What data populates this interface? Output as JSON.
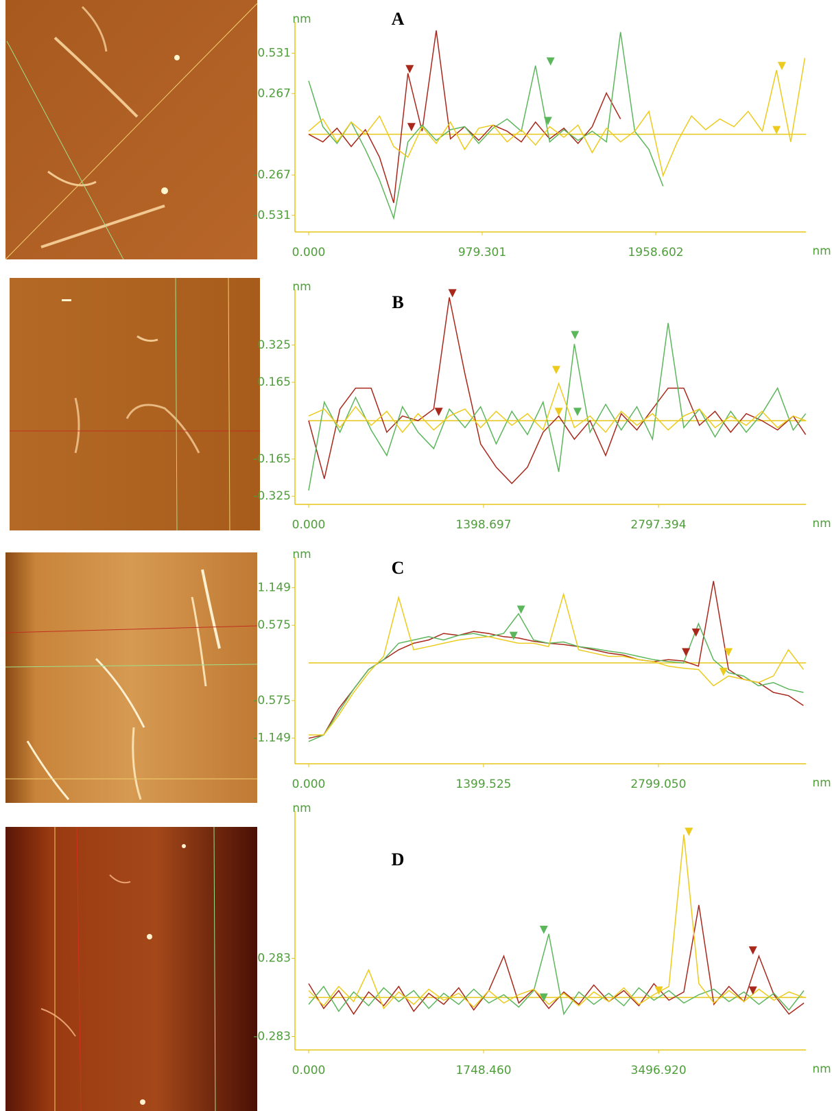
{
  "chart_data": [
    {
      "type": "line",
      "title": "A",
      "ylabel": "nm",
      "xlabel": "nm",
      "xlim": [
        0,
        2806
      ],
      "ylim": [
        -0.64,
        0.7
      ],
      "xticks": [
        {
          "value": 0,
          "label": "0.000"
        },
        979.301,
        1958.602
      ],
      "yticks": [
        0.531,
        0.267,
        -0.267,
        -0.531
      ],
      "x": [
        0,
        80,
        160,
        240,
        320,
        400,
        480,
        560,
        640,
        720,
        800,
        880,
        960,
        1040,
        1120,
        1200,
        1280,
        1360,
        1440,
        1520,
        1600,
        1680,
        1760,
        1840,
        1920,
        2000,
        2080,
        2160,
        2240,
        2320,
        2400,
        2480,
        2560,
        2640,
        2720,
        2800
      ],
      "series": [
        {
          "color": "#a8281c",
          "values": [
            0,
            -0.05,
            0.04,
            -0.08,
            0.03,
            -0.15,
            -0.45,
            0.4,
            0.02,
            0.68,
            -0.03,
            0.05,
            -0.04,
            0.06,
            0.02,
            -0.05,
            0.08,
            -0.03,
            0.04,
            -0.06,
            0.05,
            0.27,
            0.1,
            null,
            null,
            null,
            null,
            null,
            null,
            null,
            null,
            null,
            null,
            null,
            null,
            null
          ]
        },
        {
          "color": "#5cb65c",
          "values": [
            0.35,
            0.05,
            -0.06,
            0.08,
            -0.1,
            -0.3,
            -0.55,
            -0.05,
            0.06,
            -0.04,
            0.03,
            0.05,
            -0.06,
            0.04,
            0.1,
            0.02,
            0.45,
            -0.05,
            0.03,
            -0.04,
            0.02,
            -0.05,
            0.67,
            0.02,
            -0.1,
            -0.34,
            null,
            null,
            null,
            null,
            null,
            null,
            null,
            null,
            null,
            null
          ]
        },
        {
          "color": "#eccb1e",
          "values": [
            0.02,
            0.1,
            -0.05,
            0.08,
            0,
            0.12,
            -0.08,
            -0.15,
            0.05,
            -0.06,
            0.08,
            -0.1,
            0.04,
            0.06,
            -0.05,
            0.03,
            -0.07,
            0.05,
            -0.02,
            0.06,
            -0.12,
            0.04,
            -0.05,
            0.02,
            0.15,
            -0.27,
            -0.05,
            0.12,
            0.03,
            0.1,
            0.05,
            0.15,
            0.02,
            0.42,
            -0.05,
            0.5
          ]
        }
      ],
      "markers": [
        {
          "color": "#a8281c",
          "x": 570,
          "y": 0.4
        },
        {
          "color": "#a8281c",
          "x": 580,
          "y": 0.02
        },
        {
          "color": "#5cb65c",
          "x": 1365,
          "y": 0.45
        },
        {
          "color": "#5cb65c",
          "x": 1350,
          "y": 0.06
        },
        {
          "color": "#eccb1e",
          "x": 2670,
          "y": 0.42
        },
        {
          "color": "#eccb1e",
          "x": 2640,
          "y": 0
        }
      ]
    },
    {
      "type": "line",
      "title": "B",
      "ylabel": "nm",
      "xlabel": "nm",
      "xlim": [
        0,
        3977
      ],
      "ylim": [
        -0.36,
        0.54
      ],
      "xticks": [
        {
          "value": 0,
          "label": "0.000"
        },
        1398.697,
        2797.394
      ],
      "yticks": [
        0.325,
        0.165,
        -0.165,
        -0.325
      ],
      "x": [
        0,
        125,
        250,
        375,
        500,
        625,
        750,
        875,
        1000,
        1125,
        1250,
        1375,
        1500,
        1625,
        1750,
        1875,
        2000,
        2125,
        2250,
        2375,
        2500,
        2625,
        2750,
        2875,
        3000,
        3125,
        3250,
        3375,
        3500,
        3625,
        3750,
        3875,
        3975
      ],
      "series": [
        {
          "color": "#a8281c",
          "values": [
            0,
            -0.25,
            0.05,
            0.14,
            0.14,
            -0.05,
            0.02,
            0,
            0.05,
            0.53,
            0.2,
            -0.1,
            -0.2,
            -0.27,
            -0.2,
            -0.05,
            0.02,
            -0.08,
            0,
            -0.15,
            0.03,
            -0.04,
            0.05,
            0.14,
            0.14,
            -0.02,
            0.04,
            -0.05,
            0.03,
            0,
            -0.04,
            0.02,
            -0.06
          ]
        },
        {
          "color": "#5cb65c",
          "values": [
            -0.3,
            0.08,
            -0.05,
            0.1,
            -0.04,
            -0.15,
            0.06,
            -0.05,
            -0.12,
            0.05,
            -0.03,
            0.06,
            -0.1,
            0.04,
            -0.06,
            0.08,
            -0.22,
            0.33,
            -0.05,
            0.07,
            -0.04,
            0.06,
            -0.08,
            0.42,
            -0.03,
            0.05,
            -0.07,
            0.04,
            -0.05,
            0.03,
            0.14,
            -0.04,
            0.03
          ]
        },
        {
          "color": "#eccb1e",
          "values": [
            0.02,
            0.05,
            -0.03,
            0.06,
            -0.02,
            0.04,
            -0.05,
            0.03,
            -0.04,
            0.02,
            0.05,
            -0.03,
            0.04,
            -0.02,
            0.03,
            -0.04,
            0.16,
            -0.03,
            0.02,
            -0.05,
            0.04,
            -0.02,
            0.03,
            -0.04,
            0.02,
            0.05,
            -0.03,
            0.02,
            -0.02,
            0.04,
            -0.03,
            0.02,
            0
          ]
        }
      ],
      "markers": [
        {
          "color": "#a8281c",
          "x": 1150,
          "y": 0.53
        },
        {
          "color": "#a8281c",
          "x": 1040,
          "y": 0.02
        },
        {
          "color": "#5cb65c",
          "x": 2130,
          "y": 0.35
        },
        {
          "color": "#5cb65c",
          "x": 2150,
          "y": 0.02
        },
        {
          "color": "#eccb1e",
          "x": 1980,
          "y": 0.2
        },
        {
          "color": "#eccb1e",
          "x": 2000,
          "y": 0.02
        }
      ]
    },
    {
      "type": "line",
      "title": "C",
      "ylabel": "nm",
      "xlabel": "nm",
      "xlim": [
        0,
        3980
      ],
      "ylim": [
        -1.54,
        1.53
      ],
      "xticks": [
        {
          "value": 0,
          "label": "0.000"
        },
        1399.525,
        {
          "value": 2799.05,
          "label": "2799.050"
        }
      ],
      "yticks": [
        1.149,
        0.575,
        -0.575,
        -1.149
      ],
      "x": [
        0,
        120,
        240,
        360,
        480,
        600,
        720,
        840,
        960,
        1080,
        1200,
        1320,
        1440,
        1560,
        1680,
        1800,
        1920,
        2040,
        2160,
        2280,
        2400,
        2520,
        2640,
        2760,
        2880,
        3000,
        3120,
        3240,
        3360,
        3480,
        3600,
        3720,
        3840,
        3960
      ],
      "series": [
        {
          "color": "#a8281c",
          "values": [
            -1.15,
            -1.1,
            -0.7,
            -0.4,
            -0.1,
            0.05,
            0.2,
            0.3,
            0.35,
            0.45,
            0.42,
            0.48,
            0.45,
            0.4,
            0.38,
            0.33,
            0.3,
            0.28,
            0.25,
            0.2,
            0.15,
            0.12,
            0.05,
            0.02,
            0.05,
            0.03,
            -0.05,
            1.25,
            -0.1,
            -0.25,
            -0.3,
            -0.45,
            -0.5,
            -0.65
          ]
        },
        {
          "color": "#5cb65c",
          "values": [
            -1.2,
            -1.1,
            -0.75,
            -0.4,
            -0.1,
            0.05,
            0.3,
            0.35,
            0.4,
            0.35,
            0.42,
            0.45,
            0.4,
            0.45,
            0.75,
            0.35,
            0.3,
            0.32,
            0.25,
            0.22,
            0.18,
            0.15,
            0.1,
            0.05,
            0.02,
            0,
            0.6,
            0.05,
            -0.15,
            -0.2,
            -0.35,
            -0.3,
            -0.4,
            -0.45
          ]
        },
        {
          "color": "#eccb1e",
          "values": [
            -1.1,
            -1.1,
            -0.8,
            -0.45,
            -0.15,
            0.1,
            1.0,
            0.2,
            0.25,
            0.3,
            0.35,
            0.38,
            0.4,
            0.35,
            0.3,
            0.3,
            0.25,
            1.05,
            0.2,
            0.15,
            0.1,
            0.1,
            0.05,
            0.02,
            -0.05,
            -0.08,
            -0.1,
            -0.35,
            -0.2,
            -0.25,
            -0.3,
            -0.2,
            0.2,
            -0.1
          ]
        }
      ],
      "markers": [
        {
          "color": "#a8281c",
          "x": 3100,
          "y": 0.4
        },
        {
          "color": "#a8281c",
          "x": 3020,
          "y": 0.1
        },
        {
          "color": "#5cb65c",
          "x": 1700,
          "y": 0.75
        },
        {
          "color": "#5cb65c",
          "x": 1640,
          "y": 0.35
        },
        {
          "color": "#eccb1e",
          "x": 3360,
          "y": 0.1
        },
        {
          "color": "#eccb1e",
          "x": 3320,
          "y": -0.2
        }
      ]
    },
    {
      "type": "line",
      "title": "D",
      "ylabel": "nm",
      "xlabel": "nm",
      "xlim": [
        0,
        4970
      ],
      "ylim": [
        -0.38,
        1.31
      ],
      "xticks": [
        {
          "value": 0,
          "label": "0.000"
        },
        {
          "value": 1748.46,
          "label": "1748.460"
        },
        {
          "value": 3496.92,
          "label": "3496.920"
        }
      ],
      "yticks": [
        0.283,
        -0.283
      ],
      "x": [
        0,
        150,
        300,
        450,
        600,
        750,
        900,
        1050,
        1200,
        1350,
        1500,
        1650,
        1800,
        1950,
        2100,
        2250,
        2400,
        2550,
        2700,
        2850,
        3000,
        3150,
        3300,
        3450,
        3600,
        3750,
        3900,
        4050,
        4200,
        4350,
        4500,
        4650,
        4800,
        4950
      ],
      "series": [
        {
          "color": "#a8281c",
          "values": [
            0.1,
            -0.08,
            0.05,
            -0.12,
            0.04,
            -0.06,
            0.08,
            -0.1,
            0.03,
            -0.05,
            0.07,
            -0.09,
            0.05,
            0.3,
            -0.04,
            0.06,
            -0.08,
            0.04,
            -0.05,
            0.09,
            -0.03,
            0.05,
            -0.06,
            0.1,
            -0.02,
            0.04,
            0.67,
            -0.05,
            0.08,
            -0.03,
            0.3,
            0.02,
            -0.12,
            -0.04
          ]
        },
        {
          "color": "#5cb65c",
          "values": [
            -0.05,
            0.08,
            -0.1,
            0.04,
            -0.06,
            0.07,
            -0.03,
            0.05,
            -0.08,
            0.03,
            -0.05,
            0.06,
            -0.04,
            0.02,
            -0.07,
            0.05,
            0.46,
            -0.12,
            0.04,
            -0.05,
            0.03,
            -0.06,
            0.07,
            -0.02,
            0.05,
            -0.04,
            0.02,
            0.06,
            -0.03,
            0.04,
            -0.05,
            0.03,
            -0.09,
            0.05
          ]
        },
        {
          "color": "#eccb1e",
          "values": [
            0.05,
            -0.06,
            0.08,
            -0.03,
            0.2,
            -0.08,
            0.04,
            -0.05,
            0.06,
            -0.02,
            0.03,
            -0.07,
            0.05,
            -0.04,
            0.02,
            0.06,
            -0.05,
            0.03,
            -0.06,
            0.04,
            -0.03,
            0.07,
            -0.05,
            0.02,
            0.08,
            1.18,
            0.1,
            -0.04,
            0.05,
            -0.03,
            0.06,
            -0.02,
            0.04,
            0
          ]
        }
      ],
      "markers": [
        {
          "color": "#a8281c",
          "x": 4440,
          "y": 0.31
        },
        {
          "color": "#a8281c",
          "x": 4440,
          "y": 0.02
        },
        {
          "color": "#5cb65c",
          "x": 2350,
          "y": 0.46
        },
        {
          "color": "#5cb65c",
          "x": 2350,
          "y": -0.03
        },
        {
          "color": "#eccb1e",
          "x": 3800,
          "y": 1.17
        },
        {
          "color": "#eccb1e",
          "x": 3500,
          "y": 0.02
        }
      ]
    }
  ]
}
